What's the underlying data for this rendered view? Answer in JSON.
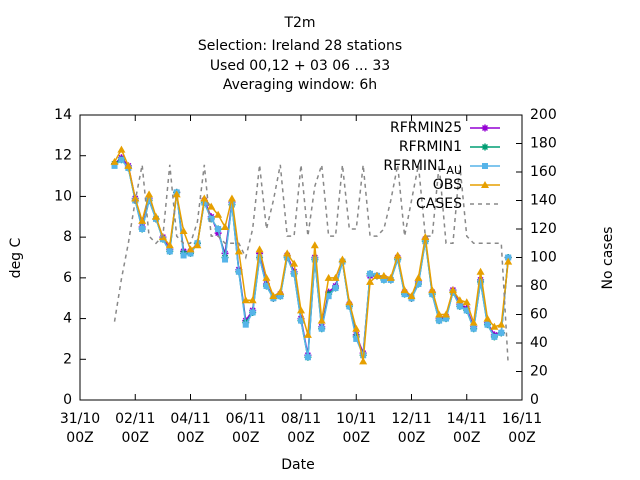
{
  "chart_data": {
    "type": "line",
    "title": "T2m",
    "subtitle": [
      "Selection: Ireland     28 stations",
      "Used  00,12  + 03 06 ... 33",
      "Averaging window:  6h"
    ],
    "xlabel": "Date",
    "ylabel": "deg C",
    "y2label": "No cases",
    "x": [
      "01/11 06Z",
      "01/11 12Z",
      "01/11 18Z",
      "02/11 00Z",
      "02/11 06Z",
      "02/11 12Z",
      "02/11 18Z",
      "03/11 00Z",
      "03/11 06Z",
      "03/11 12Z",
      "03/11 18Z",
      "04/11 00Z",
      "04/11 06Z",
      "04/11 12Z",
      "04/11 18Z",
      "05/11 00Z",
      "05/11 06Z",
      "05/11 12Z",
      "05/11 18Z",
      "06/11 00Z",
      "06/11 06Z",
      "06/11 12Z",
      "06/11 18Z",
      "07/11 00Z",
      "07/11 06Z",
      "07/11 12Z",
      "07/11 18Z",
      "08/11 00Z",
      "08/11 06Z",
      "08/11 12Z",
      "08/11 18Z",
      "09/11 00Z",
      "09/11 06Z",
      "09/11 12Z",
      "09/11 18Z",
      "10/11 00Z",
      "10/11 06Z",
      "10/11 12Z",
      "10/11 18Z",
      "11/11 00Z",
      "11/11 06Z",
      "11/11 12Z",
      "11/11 18Z",
      "12/11 00Z",
      "12/11 06Z",
      "12/11 12Z",
      "12/11 18Z",
      "13/11 00Z",
      "13/11 06Z",
      "13/11 12Z",
      "13/11 18Z",
      "14/11 00Z",
      "14/11 06Z",
      "14/11 12Z",
      "14/11 18Z",
      "15/11 00Z",
      "15/11 06Z",
      "15/11 12Z"
    ],
    "xlim": [
      "31/10 00Z",
      "16/11 00Z"
    ],
    "xticks": [
      "31/10 00Z",
      "02/11 00Z",
      "04/11 00Z",
      "06/11 00Z",
      "08/11 00Z",
      "10/11 00Z",
      "12/11 00Z",
      "14/11 00Z",
      "16/11 00Z"
    ],
    "ylim": [
      0,
      14
    ],
    "yticks": [
      0,
      2,
      4,
      6,
      8,
      10,
      12,
      14
    ],
    "y2lim": [
      0,
      200
    ],
    "y2ticks": [
      0,
      20,
      40,
      60,
      80,
      100,
      120,
      140,
      160,
      180,
      200
    ],
    "legend": "top-right",
    "series": [
      {
        "name": "RFRMIN25",
        "color": "#9400d3",
        "values": [
          11.6,
          11.9,
          11.5,
          9.9,
          8.5,
          9.9,
          8.9,
          8.0,
          7.4,
          10.2,
          7.3,
          7.3,
          7.7,
          9.8,
          9.0,
          8.2,
          7.2,
          9.7,
          6.4,
          3.9,
          4.4,
          7.2,
          5.7,
          5.0,
          5.2,
          7.1,
          6.3,
          4.0,
          2.2,
          7.0,
          3.6,
          5.3,
          5.6,
          6.8,
          4.7,
          3.2,
          2.3,
          6.1,
          6.1,
          6.0,
          5.9,
          7.0,
          5.3,
          5.0,
          5.8,
          7.9,
          5.3,
          4.0,
          4.1,
          5.4,
          4.7,
          4.5,
          3.6,
          5.9,
          3.8,
          3.2,
          3.3,
          7.0
        ]
      },
      {
        "name": "RFRMIN1",
        "color": "#009e73",
        "values": [
          11.6,
          11.8,
          11.4,
          9.8,
          8.4,
          9.8,
          8.9,
          7.9,
          7.3,
          10.2,
          7.2,
          7.2,
          7.7,
          9.7,
          8.9,
          8.4,
          7.0,
          9.6,
          6.3,
          3.8,
          4.3,
          7.0,
          5.6,
          5.0,
          5.1,
          7.0,
          6.2,
          3.9,
          2.1,
          6.9,
          3.5,
          5.2,
          5.5,
          6.8,
          4.6,
          3.1,
          2.2,
          6.2,
          6.1,
          5.9,
          5.9,
          6.9,
          5.2,
          5.0,
          5.7,
          7.8,
          5.2,
          3.9,
          4.0,
          5.3,
          4.6,
          4.4,
          3.5,
          5.8,
          3.7,
          3.1,
          3.3,
          7.0
        ]
      },
      {
        "name": "RFRMIN1_AU",
        "color": "#56b4e9",
        "values": [
          11.5,
          11.8,
          11.4,
          9.8,
          8.4,
          9.8,
          8.9,
          7.9,
          7.3,
          10.2,
          7.1,
          7.2,
          7.7,
          9.7,
          8.9,
          8.4,
          6.9,
          9.6,
          6.3,
          3.7,
          4.3,
          7.0,
          5.6,
          5.0,
          5.1,
          7.0,
          6.2,
          3.9,
          2.1,
          6.9,
          3.5,
          5.1,
          5.5,
          6.8,
          4.6,
          3.0,
          2.2,
          6.2,
          6.1,
          5.9,
          5.9,
          6.9,
          5.2,
          5.0,
          5.7,
          7.8,
          5.2,
          3.9,
          4.0,
          5.3,
          4.6,
          4.4,
          3.5,
          5.8,
          3.7,
          3.1,
          3.3,
          7.0
        ]
      },
      {
        "name": "OBS",
        "color": "#e69f00",
        "values": [
          11.7,
          12.3,
          11.5,
          9.9,
          8.8,
          10.1,
          9.0,
          8.0,
          7.6,
          10.1,
          8.3,
          7.4,
          7.6,
          9.9,
          9.5,
          9.1,
          8.5,
          9.9,
          7.3,
          4.9,
          4.9,
          7.4,
          6.0,
          5.1,
          5.3,
          7.2,
          6.7,
          4.4,
          3.2,
          7.6,
          3.9,
          6.0,
          6.0,
          6.9,
          4.8,
          3.5,
          1.9,
          5.8,
          6.1,
          6.1,
          6.0,
          7.1,
          5.4,
          5.1,
          6.0,
          8.0,
          5.4,
          4.2,
          4.2,
          5.4,
          4.9,
          4.8,
          3.8,
          6.3,
          4.0,
          3.6,
          3.7,
          6.8
        ]
      },
      {
        "name": "CASES",
        "color": "#888888",
        "axis": "y2",
        "dashed": true,
        "values": [
          55,
          85,
          110,
          140,
          165,
          115,
          110,
          115,
          165,
          115,
          110,
          110,
          125,
          165,
          115,
          115,
          110,
          110,
          110,
          100,
          120,
          165,
          120,
          140,
          165,
          115,
          115,
          165,
          115,
          150,
          165,
          115,
          115,
          165,
          120,
          120,
          165,
          115,
          115,
          120,
          140,
          165,
          115,
          140,
          165,
          115,
          115,
          165,
          110,
          110,
          165,
          115,
          110,
          110,
          110,
          110,
          110,
          25
        ]
      }
    ]
  }
}
